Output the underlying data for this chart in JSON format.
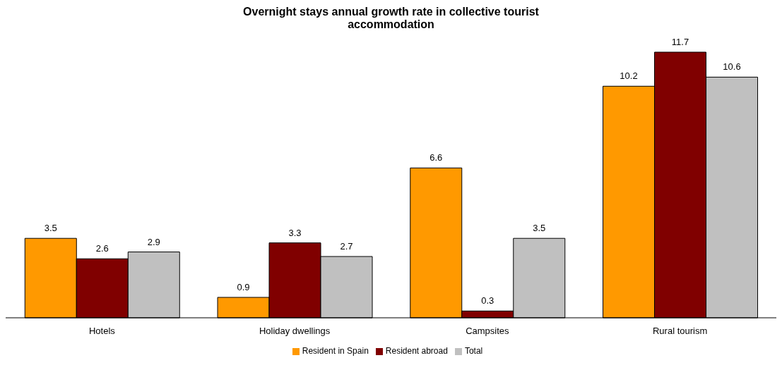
{
  "chart_data": {
    "type": "bar",
    "title": "Overnight stays annual growth rate in collective tourist accommodation",
    "categories": [
      "Hotels",
      "Holiday dwellings",
      "Campsites",
      "Rural tourism"
    ],
    "series": [
      {
        "name": "Resident in Spain",
        "color": "#ff9900",
        "values": [
          3.5,
          0.9,
          6.6,
          10.2
        ]
      },
      {
        "name": "Resident abroad",
        "color": "#800000",
        "values": [
          2.6,
          3.3,
          0.3,
          11.7
        ]
      },
      {
        "name": "Total",
        "color": "#c0c0c0",
        "values": [
          2.9,
          2.7,
          3.5,
          10.6
        ]
      }
    ],
    "data_labels": true,
    "grid": false,
    "legend": "bottom"
  }
}
